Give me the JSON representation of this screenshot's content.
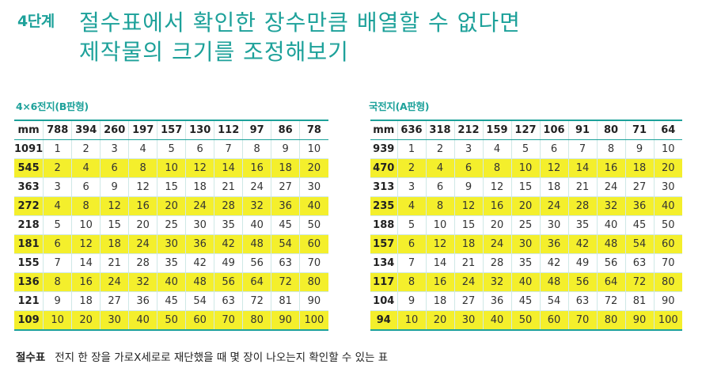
{
  "step": "4단계",
  "headline": {
    "line1": "절수표에서 확인한 장수만큼 배열할 수 없다면",
    "line2": "제작물의 크기를 조정해보기"
  },
  "colors": {
    "accent": "#1da19a",
    "highlight": "#f4ef2c"
  },
  "tables": [
    {
      "title": "4×6전지(B판형)",
      "corner": "mm",
      "headers": [
        "788",
        "394",
        "260",
        "197",
        "157",
        "130",
        "112",
        "97",
        "86",
        "78"
      ],
      "rows": [
        {
          "label": "1091",
          "values": [
            "1",
            "2",
            "3",
            "4",
            "5",
            "6",
            "7",
            "8",
            "9",
            "10"
          ]
        },
        {
          "label": "545",
          "values": [
            "2",
            "4",
            "6",
            "8",
            "10",
            "12",
            "14",
            "16",
            "18",
            "20"
          ]
        },
        {
          "label": "363",
          "values": [
            "3",
            "6",
            "9",
            "12",
            "15",
            "18",
            "21",
            "24",
            "27",
            "30"
          ]
        },
        {
          "label": "272",
          "values": [
            "4",
            "8",
            "12",
            "16",
            "20",
            "24",
            "28",
            "32",
            "36",
            "40"
          ]
        },
        {
          "label": "218",
          "values": [
            "5",
            "10",
            "15",
            "20",
            "25",
            "30",
            "35",
            "40",
            "45",
            "50"
          ]
        },
        {
          "label": "181",
          "values": [
            "6",
            "12",
            "18",
            "24",
            "30",
            "36",
            "42",
            "48",
            "54",
            "60"
          ]
        },
        {
          "label": "155",
          "values": [
            "7",
            "14",
            "21",
            "28",
            "35",
            "42",
            "49",
            "56",
            "63",
            "70"
          ]
        },
        {
          "label": "136",
          "values": [
            "8",
            "16",
            "24",
            "32",
            "40",
            "48",
            "56",
            "64",
            "72",
            "80"
          ]
        },
        {
          "label": "121",
          "values": [
            "9",
            "18",
            "27",
            "36",
            "45",
            "54",
            "63",
            "72",
            "81",
            "90"
          ]
        },
        {
          "label": "109",
          "values": [
            "10",
            "20",
            "30",
            "40",
            "50",
            "60",
            "70",
            "80",
            "90",
            "100"
          ]
        }
      ]
    },
    {
      "title": "국전지(A판형)",
      "corner": "mm",
      "headers": [
        "636",
        "318",
        "212",
        "159",
        "127",
        "106",
        "91",
        "80",
        "71",
        "64"
      ],
      "rows": [
        {
          "label": "939",
          "values": [
            "1",
            "2",
            "3",
            "4",
            "5",
            "6",
            "7",
            "8",
            "9",
            "10"
          ]
        },
        {
          "label": "470",
          "values": [
            "2",
            "4",
            "6",
            "8",
            "10",
            "12",
            "14",
            "16",
            "18",
            "20"
          ]
        },
        {
          "label": "313",
          "values": [
            "3",
            "6",
            "9",
            "12",
            "15",
            "18",
            "21",
            "24",
            "27",
            "30"
          ]
        },
        {
          "label": "235",
          "values": [
            "4",
            "8",
            "12",
            "16",
            "20",
            "24",
            "28",
            "32",
            "36",
            "40"
          ]
        },
        {
          "label": "188",
          "values": [
            "5",
            "10",
            "15",
            "20",
            "25",
            "30",
            "35",
            "40",
            "45",
            "50"
          ]
        },
        {
          "label": "157",
          "values": [
            "6",
            "12",
            "18",
            "24",
            "30",
            "36",
            "42",
            "48",
            "54",
            "60"
          ]
        },
        {
          "label": "134",
          "values": [
            "7",
            "14",
            "21",
            "28",
            "35",
            "42",
            "49",
            "56",
            "63",
            "70"
          ]
        },
        {
          "label": "117",
          "values": [
            "8",
            "16",
            "24",
            "32",
            "40",
            "48",
            "56",
            "64",
            "72",
            "80"
          ]
        },
        {
          "label": "104",
          "values": [
            "9",
            "18",
            "27",
            "36",
            "45",
            "54",
            "63",
            "72",
            "81",
            "90"
          ]
        },
        {
          "label": "94",
          "values": [
            "10",
            "20",
            "30",
            "40",
            "50",
            "60",
            "70",
            "80",
            "90",
            "100"
          ]
        }
      ]
    }
  ],
  "caption": {
    "term": "절수표",
    "text": "전지 한 장을 가로X세로로 재단했을 때 몇 장이 나오는지 확인할 수 있는 표"
  }
}
